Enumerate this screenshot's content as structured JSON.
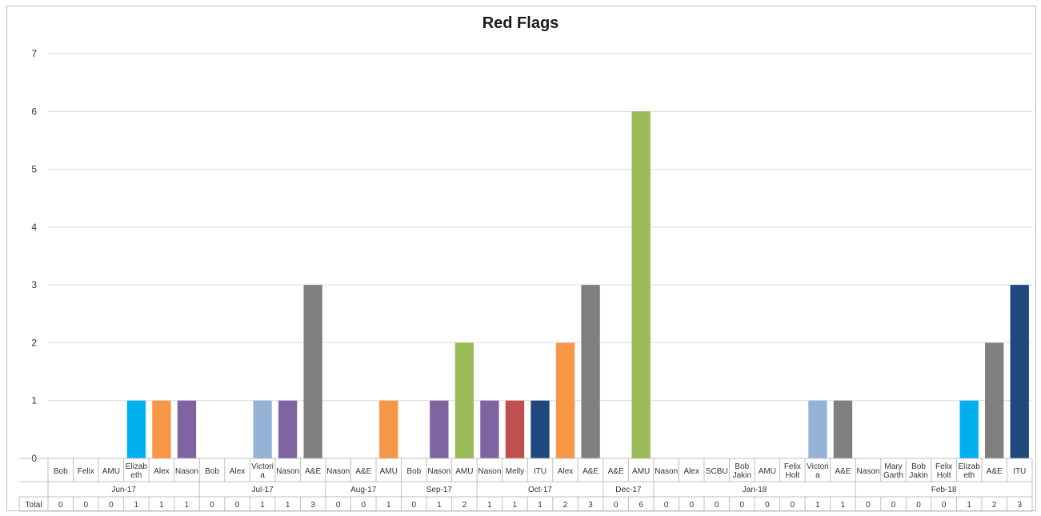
{
  "chart_data": {
    "type": "bar",
    "title": "Red Flags",
    "ylim": [
      0,
      7
    ],
    "yticks": [
      0,
      1,
      2,
      3,
      4,
      5,
      6,
      7
    ],
    "grid": true,
    "legend": "none",
    "table_label": "Total",
    "groups": [
      {
        "label": "Jun-17",
        "items": [
          {
            "name": "Bob",
            "value": 0,
            "color": "#4472c4"
          },
          {
            "name": "Felix",
            "value": 0,
            "color": "#4472c4"
          },
          {
            "name": "AMU",
            "value": 0,
            "color": "#9bbb59"
          },
          {
            "name": "Elizab eth",
            "value": 1,
            "color": "#00b0f0"
          },
          {
            "name": "Alex",
            "value": 1,
            "color": "#f79646"
          },
          {
            "name": "Nason",
            "value": 1,
            "color": "#8064a2"
          }
        ]
      },
      {
        "label": "Jul-17",
        "items": [
          {
            "name": "Bob",
            "value": 0,
            "color": "#4472c4"
          },
          {
            "name": "Alex",
            "value": 0,
            "color": "#f79646"
          },
          {
            "name": "Victori a",
            "value": 1,
            "color": "#95b3d7"
          },
          {
            "name": "Nason",
            "value": 1,
            "color": "#8064a2"
          },
          {
            "name": "A&E",
            "value": 3,
            "color": "#7f7f7f"
          }
        ]
      },
      {
        "label": "Aug-17",
        "items": [
          {
            "name": "Nason",
            "value": 0,
            "color": "#8064a2"
          },
          {
            "name": "A&E",
            "value": 0,
            "color": "#7f7f7f"
          },
          {
            "name": "AMU",
            "value": 1,
            "color": "#f79646"
          }
        ]
      },
      {
        "label": "Sep-17",
        "items": [
          {
            "name": "Bob",
            "value": 0,
            "color": "#4472c4"
          },
          {
            "name": "Nason",
            "value": 1,
            "color": "#8064a2"
          },
          {
            "name": "AMU",
            "value": 2,
            "color": "#9bbb59"
          }
        ]
      },
      {
        "label": "Oct-17",
        "items": [
          {
            "name": "Nason",
            "value": 1,
            "color": "#8064a2"
          },
          {
            "name": "Melly",
            "value": 1,
            "color": "#c0504d"
          },
          {
            "name": "ITU",
            "value": 1,
            "color": "#1f497d"
          },
          {
            "name": "Alex",
            "value": 2,
            "color": "#f79646"
          },
          {
            "name": "A&E",
            "value": 3,
            "color": "#7f7f7f"
          }
        ]
      },
      {
        "label": "Dec-17",
        "items": [
          {
            "name": "A&E",
            "value": 0,
            "color": "#7f7f7f"
          },
          {
            "name": "AMU",
            "value": 6,
            "color": "#9bbb59"
          }
        ]
      },
      {
        "label": "Jan-18",
        "items": [
          {
            "name": "Nason",
            "value": 0,
            "color": "#8064a2"
          },
          {
            "name": "Alex",
            "value": 0,
            "color": "#f79646"
          },
          {
            "name": "SCBU",
            "value": 0,
            "color": "#4472c4"
          },
          {
            "name": "Bob Jakin",
            "value": 0,
            "color": "#4472c4"
          },
          {
            "name": "AMU",
            "value": 0,
            "color": "#9bbb59"
          },
          {
            "name": "Felix Holt",
            "value": 0,
            "color": "#4472c4"
          },
          {
            "name": "Victori a",
            "value": 1,
            "color": "#95b3d7"
          },
          {
            "name": "A&E",
            "value": 1,
            "color": "#7f7f7f"
          }
        ]
      },
      {
        "label": "Feb-18",
        "items": [
          {
            "name": "Nason",
            "value": 0,
            "color": "#8064a2"
          },
          {
            "name": "Mary Garth",
            "value": 0,
            "color": "#4472c4"
          },
          {
            "name": "Bob Jakin",
            "value": 0,
            "color": "#4472c4"
          },
          {
            "name": "Felix Holt",
            "value": 0,
            "color": "#4472c4"
          },
          {
            "name": "Elizab eth",
            "value": 1,
            "color": "#00b0f0"
          },
          {
            "name": "A&E",
            "value": 2,
            "color": "#7f7f7f"
          },
          {
            "name": "ITU",
            "value": 3,
            "color": "#1f497d"
          }
        ]
      }
    ]
  }
}
